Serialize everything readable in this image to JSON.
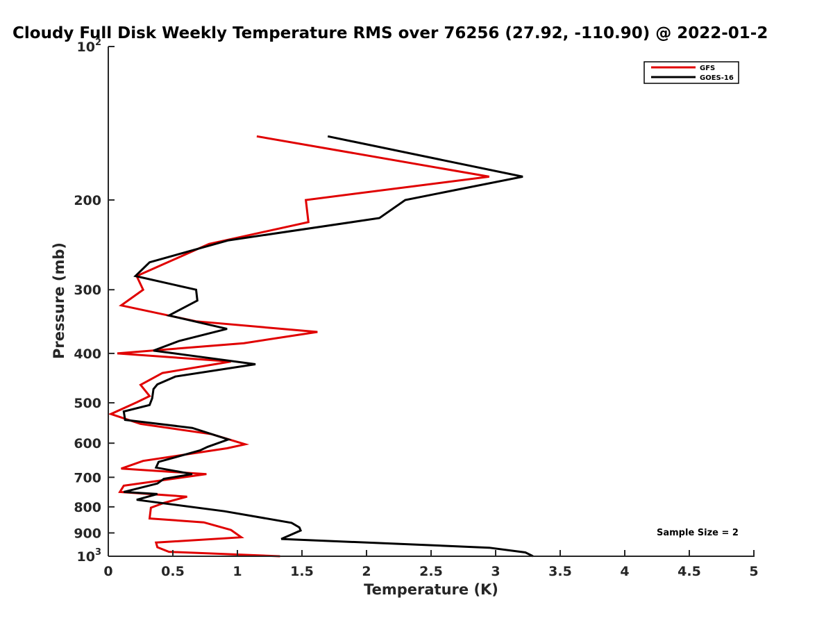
{
  "chart_data": {
    "type": "line",
    "title": "Cloudy Full Disk Weekly Temperature RMS over 76256 (27.92, -110.90) @ 2022-01-2",
    "xlabel": "Temperature (K)",
    "ylabel": "Pressure (mb)",
    "xlim": [
      0,
      5
    ],
    "ylim": [
      100,
      1000
    ],
    "yscale": "log",
    "y_reversed": true,
    "xticks": [
      0,
      0.5,
      1,
      1.5,
      2,
      2.5,
      3,
      3.5,
      4,
      4.5,
      5
    ],
    "xtick_labels": [
      "0",
      "0.5",
      "1",
      "1.5",
      "2",
      "2.5",
      "3",
      "3.5",
      "4",
      "4.5",
      "5"
    ],
    "yticks": [
      {
        "value": 100,
        "base": "10",
        "exp": "2"
      },
      {
        "value": 200,
        "label": "200"
      },
      {
        "value": 300,
        "label": "300"
      },
      {
        "value": 400,
        "label": "400"
      },
      {
        "value": 500,
        "label": "500"
      },
      {
        "value": 600,
        "label": "600"
      },
      {
        "value": 700,
        "label": "700"
      },
      {
        "value": 800,
        "label": "800"
      },
      {
        "value": 900,
        "label": "900"
      },
      {
        "value": 1000,
        "base": "10",
        "exp": "3"
      }
    ],
    "legend_position": "top-right",
    "grid": false,
    "annotation": "Sample Size = 2",
    "series": [
      {
        "name": "GFS",
        "color": "#e00000",
        "points": [
          [
            1.15,
            150
          ],
          [
            2.95,
            180
          ],
          [
            1.53,
            200
          ],
          [
            1.55,
            221
          ],
          [
            0.78,
            244
          ],
          [
            0.22,
            282
          ],
          [
            0.27,
            300
          ],
          [
            0.1,
            322
          ],
          [
            0.68,
            346
          ],
          [
            1.62,
            363
          ],
          [
            1.05,
            382
          ],
          [
            0.07,
            400
          ],
          [
            0.95,
            415
          ],
          [
            0.42,
            437
          ],
          [
            0.25,
            461
          ],
          [
            0.32,
            485
          ],
          [
            0.22,
            499
          ],
          [
            0.02,
            526
          ],
          [
            0.25,
            550
          ],
          [
            0.8,
            576
          ],
          [
            1.06,
            603
          ],
          [
            0.92,
            614
          ],
          [
            0.27,
            650
          ],
          [
            0.1,
            673
          ],
          [
            0.76,
            690
          ],
          [
            0.12,
            727
          ],
          [
            0.09,
            748
          ],
          [
            0.61,
            764
          ],
          [
            0.43,
            786
          ],
          [
            0.33,
            803
          ],
          [
            0.32,
            843
          ],
          [
            0.74,
            858
          ],
          [
            0.95,
            888
          ],
          [
            1.03,
            918
          ],
          [
            0.37,
            940
          ],
          [
            0.38,
            960
          ],
          [
            0.47,
            980
          ],
          [
            1.33,
            1000
          ]
        ]
      },
      {
        "name": "GOES-16",
        "color": "#000000",
        "points": [
          [
            1.7,
            150
          ],
          [
            3.21,
            180
          ],
          [
            2.3,
            200
          ],
          [
            2.1,
            217
          ],
          [
            0.93,
            240
          ],
          [
            0.32,
            265
          ],
          [
            0.21,
            282
          ],
          [
            0.68,
            300
          ],
          [
            0.69,
            315
          ],
          [
            0.47,
            337
          ],
          [
            0.92,
            358
          ],
          [
            0.55,
            378
          ],
          [
            0.35,
            395
          ],
          [
            1.14,
            420
          ],
          [
            0.52,
            444
          ],
          [
            0.38,
            460
          ],
          [
            0.35,
            470
          ],
          [
            0.34,
            490
          ],
          [
            0.32,
            505
          ],
          [
            0.12,
            520
          ],
          [
            0.13,
            540
          ],
          [
            0.65,
            560
          ],
          [
            0.93,
            590
          ],
          [
            0.77,
            610
          ],
          [
            0.71,
            620
          ],
          [
            0.39,
            653
          ],
          [
            0.37,
            670
          ],
          [
            0.65,
            690
          ],
          [
            0.43,
            705
          ],
          [
            0.38,
            720
          ],
          [
            0.12,
            748
          ],
          [
            0.38,
            755
          ],
          [
            0.22,
            775
          ],
          [
            0.9,
            816
          ],
          [
            1.42,
            860
          ],
          [
            1.48,
            878
          ],
          [
            1.49,
            890
          ],
          [
            1.34,
            925
          ],
          [
            2.95,
            962
          ],
          [
            3.23,
            983
          ],
          [
            3.29,
            1000
          ]
        ]
      }
    ]
  }
}
